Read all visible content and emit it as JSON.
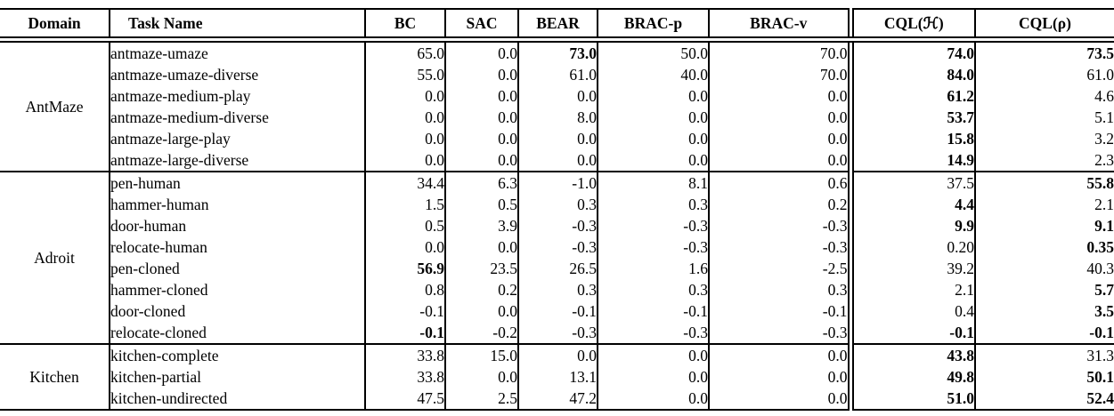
{
  "table": {
    "columns": [
      "Domain",
      "Task Name",
      "BC",
      "SAC",
      "BEAR",
      "BRAC-p",
      "BRAC-v",
      "CQL(ℋ)",
      "CQL(ρ)"
    ],
    "groups": [
      {
        "domain": "AntMaze",
        "rows": [
          {
            "task": "antmaze-umaze",
            "values": [
              "65.0",
              "0.0",
              "73.0",
              "50.0",
              "70.0",
              "74.0",
              "73.5"
            ],
            "bold": [
              0,
              0,
              1,
              0,
              0,
              1,
              1
            ]
          },
          {
            "task": "antmaze-umaze-diverse",
            "values": [
              "55.0",
              "0.0",
              "61.0",
              "40.0",
              "70.0",
              "84.0",
              "61.0"
            ],
            "bold": [
              0,
              0,
              0,
              0,
              0,
              1,
              0
            ]
          },
          {
            "task": "antmaze-medium-play",
            "values": [
              "0.0",
              "0.0",
              "0.0",
              "0.0",
              "0.0",
              "61.2",
              "4.6"
            ],
            "bold": [
              0,
              0,
              0,
              0,
              0,
              1,
              0
            ]
          },
          {
            "task": "antmaze-medium-diverse",
            "values": [
              "0.0",
              "0.0",
              "8.0",
              "0.0",
              "0.0",
              "53.7",
              "5.1"
            ],
            "bold": [
              0,
              0,
              0,
              0,
              0,
              1,
              0
            ]
          },
          {
            "task": "antmaze-large-play",
            "values": [
              "0.0",
              "0.0",
              "0.0",
              "0.0",
              "0.0",
              "15.8",
              "3.2"
            ],
            "bold": [
              0,
              0,
              0,
              0,
              0,
              1,
              0
            ]
          },
          {
            "task": "antmaze-large-diverse",
            "values": [
              "0.0",
              "0.0",
              "0.0",
              "0.0",
              "0.0",
              "14.9",
              "2.3"
            ],
            "bold": [
              0,
              0,
              0,
              0,
              0,
              1,
              0
            ]
          }
        ]
      },
      {
        "domain": "Adroit",
        "rows": [
          {
            "task": "pen-human",
            "values": [
              "34.4",
              "6.3",
              "-1.0",
              "8.1",
              "0.6",
              "37.5",
              "55.8"
            ],
            "bold": [
              0,
              0,
              0,
              0,
              0,
              0,
              1
            ]
          },
          {
            "task": "hammer-human",
            "values": [
              "1.5",
              "0.5",
              "0.3",
              "0.3",
              "0.2",
              "4.4",
              "2.1"
            ],
            "bold": [
              0,
              0,
              0,
              0,
              0,
              1,
              0
            ]
          },
          {
            "task": "door-human",
            "values": [
              "0.5",
              "3.9",
              "-0.3",
              "-0.3",
              "-0.3",
              "9.9",
              "9.1"
            ],
            "bold": [
              0,
              0,
              0,
              0,
              0,
              1,
              1
            ]
          },
          {
            "task": "relocate-human",
            "values": [
              "0.0",
              "0.0",
              "-0.3",
              "-0.3",
              "-0.3",
              "0.20",
              "0.35"
            ],
            "bold": [
              0,
              0,
              0,
              0,
              0,
              0,
              1
            ]
          },
          {
            "task": "pen-cloned",
            "values": [
              "56.9",
              "23.5",
              "26.5",
              "1.6",
              "-2.5",
              "39.2",
              "40.3"
            ],
            "bold": [
              1,
              0,
              0,
              0,
              0,
              0,
              0
            ]
          },
          {
            "task": "hammer-cloned",
            "values": [
              "0.8",
              "0.2",
              "0.3",
              "0.3",
              "0.3",
              "2.1",
              "5.7"
            ],
            "bold": [
              0,
              0,
              0,
              0,
              0,
              0,
              1
            ]
          },
          {
            "task": "door-cloned",
            "values": [
              "-0.1",
              "0.0",
              "-0.1",
              "-0.1",
              "-0.1",
              "0.4",
              "3.5"
            ],
            "bold": [
              0,
              0,
              0,
              0,
              0,
              0,
              1
            ]
          },
          {
            "task": "relocate-cloned",
            "values": [
              "-0.1",
              "-0.2",
              "-0.3",
              "-0.3",
              "-0.3",
              "-0.1",
              "-0.1"
            ],
            "bold": [
              1,
              0,
              0,
              0,
              0,
              1,
              1
            ]
          }
        ]
      },
      {
        "domain": "Kitchen",
        "rows": [
          {
            "task": "kitchen-complete",
            "values": [
              "33.8",
              "15.0",
              "0.0",
              "0.0",
              "0.0",
              "43.8",
              "31.3"
            ],
            "bold": [
              0,
              0,
              0,
              0,
              0,
              1,
              0
            ]
          },
          {
            "task": "kitchen-partial",
            "values": [
              "33.8",
              "0.0",
              "13.1",
              "0.0",
              "0.0",
              "49.8",
              "50.1"
            ],
            "bold": [
              0,
              0,
              0,
              0,
              0,
              1,
              1
            ]
          },
          {
            "task": "kitchen-undirected",
            "values": [
              "47.5",
              "2.5",
              "47.2",
              "0.0",
              "0.0",
              "51.0",
              "52.4"
            ],
            "bold": [
              0,
              0,
              0,
              0,
              0,
              1,
              1
            ]
          }
        ]
      }
    ]
  }
}
